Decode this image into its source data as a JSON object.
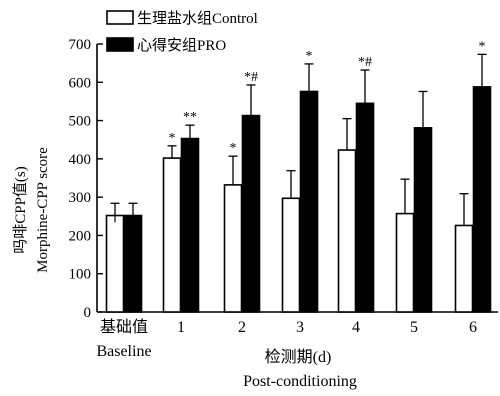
{
  "chart_data": {
    "type": "bar",
    "ylabel_line1": "吗啡CPP值(s)",
    "ylabel_line2": "Morphine-CPP score",
    "xlabel_line1": "检测期(d)",
    "xlabel_line2": "Post-conditioning",
    "ylim": [
      0,
      700
    ],
    "yticks": [
      0,
      100,
      200,
      300,
      400,
      500,
      600,
      700
    ],
    "categories": [
      "基础值",
      "1",
      "2",
      "3",
      "4",
      "5",
      "6"
    ],
    "category_sublabel": "Baseline",
    "legend_position": "top-left",
    "series": [
      {
        "name": "生理盐水组Control",
        "color": "#ffffff",
        "values": [
          252,
          402,
          332,
          297,
          423,
          257,
          226
        ],
        "errors": [
          32,
          32,
          75,
          72,
          82,
          90,
          83
        ],
        "annotations": [
          "",
          "*",
          "*",
          "",
          "",
          "",
          ""
        ]
      },
      {
        "name": "心得安组PRO",
        "color": "#000000",
        "values": [
          252,
          453,
          513,
          576,
          545,
          481,
          588
        ],
        "errors": [
          32,
          35,
          80,
          72,
          87,
          95,
          85
        ],
        "annotations": [
          "",
          "**",
          "*#",
          "*",
          "*#",
          "",
          "*"
        ]
      }
    ]
  }
}
